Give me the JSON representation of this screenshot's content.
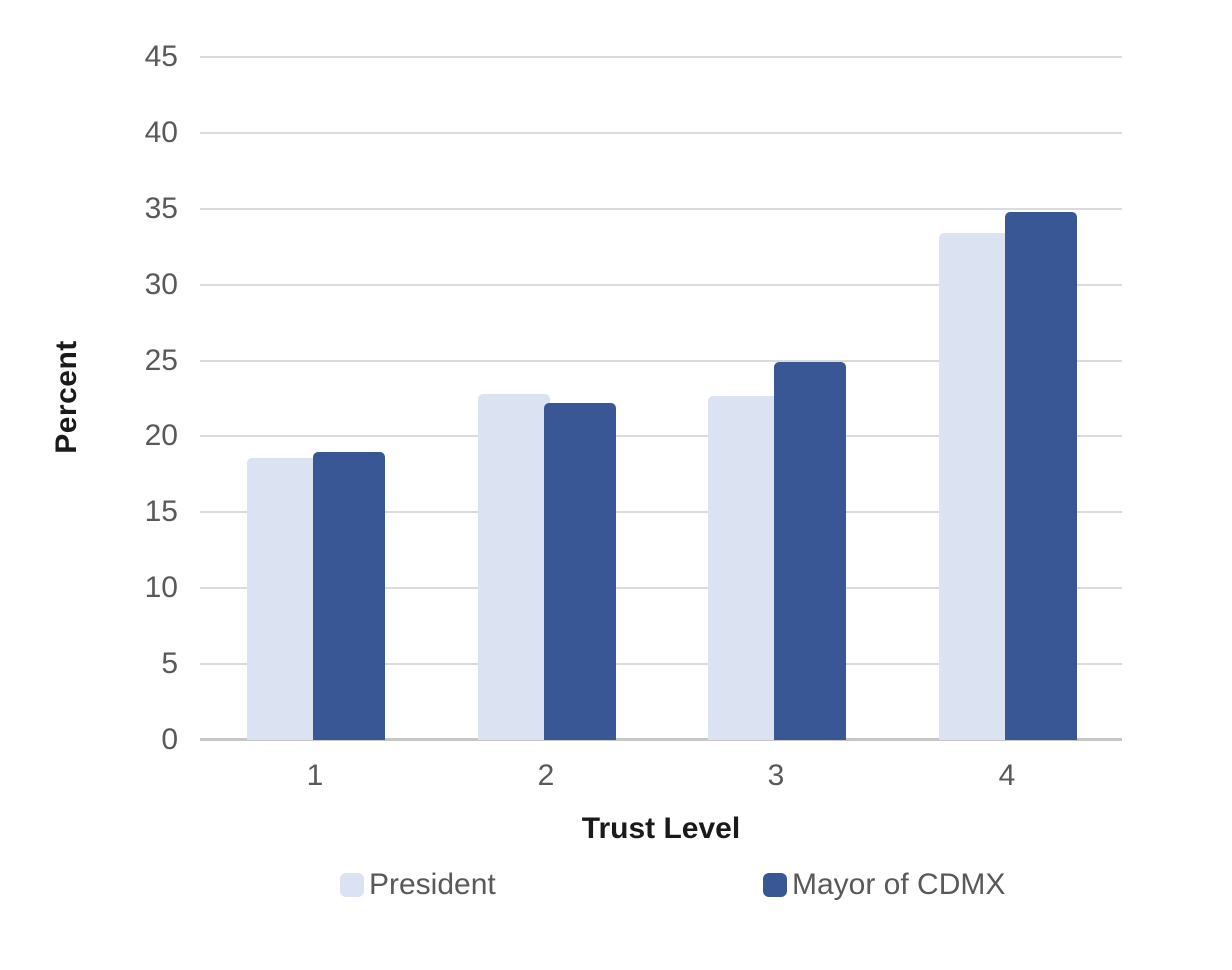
{
  "chart_data": {
    "type": "bar",
    "title": "",
    "xlabel": "Trust Level",
    "ylabel": "Percent",
    "categories": [
      "1",
      "2",
      "3",
      "4"
    ],
    "series": [
      {
        "name": "President",
        "color": "#dbe2f2",
        "values": [
          18.6,
          22.8,
          22.7,
          33.4
        ]
      },
      {
        "name": "Mayor of CDMX",
        "color": "#3a5795",
        "values": [
          19.0,
          22.2,
          24.9,
          34.8
        ]
      }
    ],
    "ylim": [
      0,
      45
    ],
    "ytick_interval": 5,
    "ytick_labels": [
      "45",
      "40",
      "35",
      "30",
      "25",
      "20",
      "15",
      "10",
      "5",
      "0"
    ],
    "grid": true,
    "legend_position": "bottom",
    "colors": {
      "gridline": "#dbdbdb",
      "baseline": "#c6c6c6",
      "tick_label": "#595959",
      "axis_title": "#1a1a1a",
      "legend_label": "#595959",
      "background": "#ffffff"
    }
  }
}
